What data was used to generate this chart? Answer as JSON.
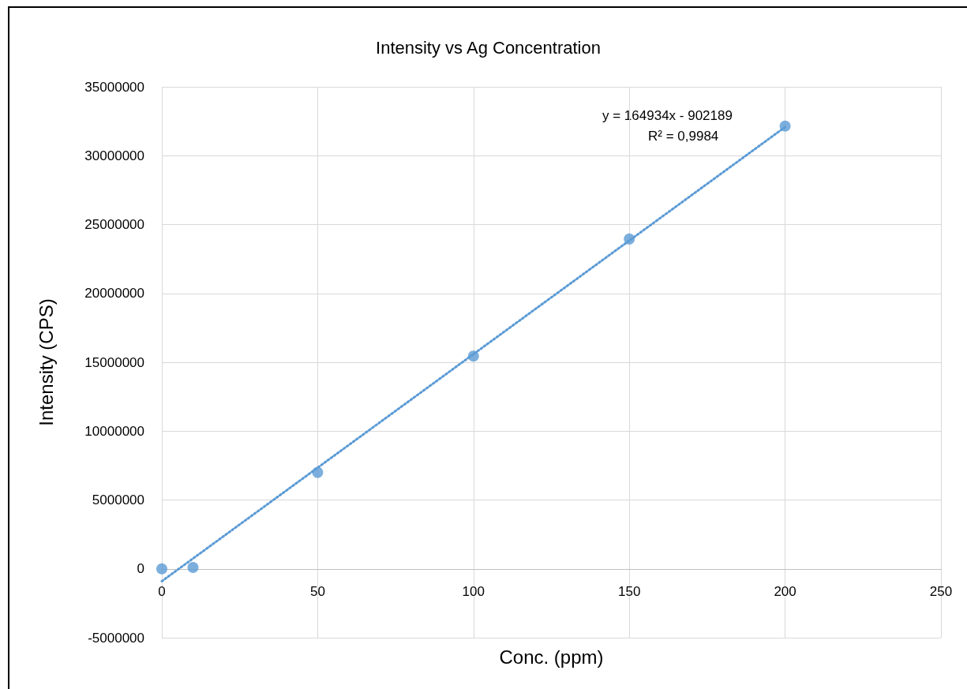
{
  "chart_data": {
    "type": "scatter",
    "title": "Intensity vs Ag Concentration",
    "xlabel": "Conc. (ppm)",
    "ylabel": "Intensity (CPS)",
    "annotations": [
      "y = 164934x - 902189",
      "R² = 0,9984"
    ],
    "xlim": [
      0,
      250
    ],
    "xticks": [
      0,
      50,
      100,
      150,
      200,
      250
    ],
    "ylim": [
      -5000000,
      35000000
    ],
    "yticks": [
      -5000000,
      0,
      5000000,
      10000000,
      15000000,
      20000000,
      25000000,
      30000000,
      35000000
    ],
    "grid": true,
    "marker": "circle",
    "series": [
      {
        "type": "scatter",
        "color": "#5b9bd5",
        "x": [
          0,
          10,
          50,
          100,
          150,
          200
        ],
        "values": [
          0,
          100000,
          7000000,
          15450000,
          23950000,
          32150000
        ]
      },
      {
        "type": "line",
        "color": "#5b9bd5",
        "marker": "none",
        "line_style": "dotted",
        "x": [
          0,
          200
        ],
        "values": [
          -900000,
          32080000
        ]
      }
    ]
  }
}
